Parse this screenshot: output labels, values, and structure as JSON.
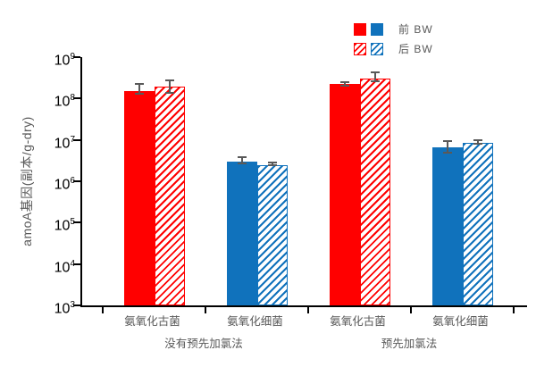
{
  "chart_data": {
    "type": "bar",
    "title": "",
    "ylabel": "amoA基因(副本/g-dry)",
    "xlabel": "",
    "y_scale": "log",
    "ylim": [
      1000,
      1000000000
    ],
    "y_ticks_exponents": [
      9,
      8,
      7,
      6,
      5,
      4,
      3
    ],
    "grid": false,
    "legend_position": "top-right",
    "legend": [
      {
        "label": "前 BW",
        "pattern": "solid"
      },
      {
        "label": "后 BW",
        "pattern": "hatched"
      }
    ],
    "colors": {
      "red": "#FF0000",
      "blue": "#1072BC",
      "error_bar": "#595959",
      "axis": "#000000",
      "label_gray": "#595959"
    },
    "groups": [
      {
        "category": "氨氧化古菌",
        "condition": "没有预先加氯法",
        "color": "#FF0000",
        "bars": [
          {
            "series": "前 BW",
            "pattern": "solid",
            "value": 150000000.0,
            "err_hi": 220000000.0,
            "err_lo": 130000000.0
          },
          {
            "series": "后 BW",
            "pattern": "hatched",
            "value": 190000000.0,
            "err_hi": 270000000.0,
            "err_lo": 140000000.0
          }
        ]
      },
      {
        "category": "氨氧化细菌",
        "condition": "没有预先加氯法",
        "color": "#1072BC",
        "bars": [
          {
            "series": "前 BW",
            "pattern": "solid",
            "value": 3000000.0,
            "err_hi": 3800000.0,
            "err_lo": 2700000.0
          },
          {
            "series": "后 BW",
            "pattern": "hatched",
            "value": 2500000.0,
            "err_hi": 2800000.0,
            "err_lo": 2400000.0
          }
        ]
      },
      {
        "category": "氨氧化古菌",
        "condition": "预先加氯法",
        "color": "#FF0000",
        "bars": [
          {
            "series": "前 BW",
            "pattern": "solid",
            "value": 220000000.0,
            "err_hi": 250000000.0,
            "err_lo": 200000000.0
          },
          {
            "series": "后 BW",
            "pattern": "hatched",
            "value": 300000000.0,
            "err_hi": 420000000.0,
            "err_lo": 260000000.0
          }
        ]
      },
      {
        "category": "氨氧化细菌",
        "condition": "预先加氯法",
        "color": "#1072BC",
        "bars": [
          {
            "series": "前 BW",
            "pattern": "solid",
            "value": 6500000.0,
            "err_hi": 9500000.0,
            "err_lo": 4800000.0
          },
          {
            "series": "后 BW",
            "pattern": "hatched",
            "value": 8500000.0,
            "err_hi": 9800000.0,
            "err_lo": 8000000.0
          }
        ]
      }
    ],
    "condition_labels": [
      {
        "text": "没有预先加氯法",
        "span": [
          0,
          1
        ]
      },
      {
        "text": "预先加氯法",
        "span": [
          2,
          3
        ]
      }
    ]
  }
}
